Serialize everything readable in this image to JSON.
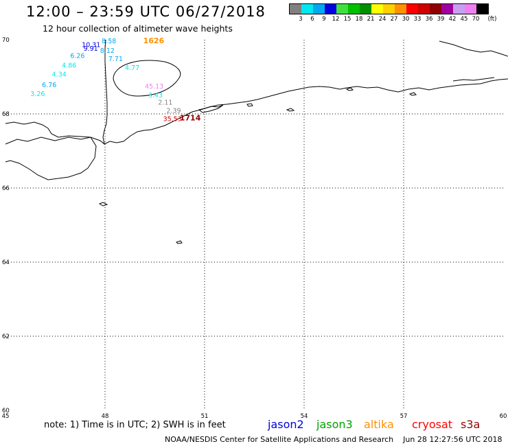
{
  "header": {
    "title": "12:00 – 23:59 UTC 06/27/2018",
    "subtitle": "12 hour collection of altimeter wave heights"
  },
  "legend": {
    "unit": "(ft)",
    "bins": [
      {
        "label": "3",
        "color": "#808080"
      },
      {
        "label": "6",
        "color": "#00e8f0"
      },
      {
        "label": "9",
        "color": "#00a8f0"
      },
      {
        "label": "12",
        "color": "#0000e0"
      },
      {
        "label": "15",
        "color": "#40e040"
      },
      {
        "label": "18",
        "color": "#00c000"
      },
      {
        "label": "21",
        "color": "#009000"
      },
      {
        "label": "24",
        "color": "#ffff00"
      },
      {
        "label": "27",
        "color": "#ffd000"
      },
      {
        "label": "30",
        "color": "#ff9000"
      },
      {
        "label": "33",
        "color": "#ff0000"
      },
      {
        "label": "36",
        "color": "#d00000"
      },
      {
        "label": "39",
        "color": "#900000"
      },
      {
        "label": "42",
        "color": "#a000a0"
      },
      {
        "label": "45",
        "color": "#c8a0f0"
      },
      {
        "label": "70",
        "color": "#f080f0"
      },
      {
        "label": "",
        "color": "#000000"
      }
    ]
  },
  "map": {
    "lon_range": [
      45,
      60
    ],
    "lat_range": [
      60,
      70
    ],
    "lon_ticks": [
      "45",
      "48",
      "51",
      "54",
      "57",
      "60"
    ],
    "lat_ticks": [
      "70",
      "68",
      "66",
      "64",
      "62",
      "60"
    ],
    "grid": "dotted"
  },
  "observations": [
    {
      "text": "8.58",
      "lon": 47.9,
      "lat": 69.98,
      "color": "#00a8f0"
    },
    {
      "text": "1626",
      "lon": 49.15,
      "lat": 69.98,
      "color": "#ff9000",
      "bold": true
    },
    {
      "text": "10.31",
      "lon": 47.3,
      "lat": 69.88,
      "color": "#0000e0"
    },
    {
      "text": "9.91",
      "lon": 47.35,
      "lat": 69.78,
      "color": "#0000e0"
    },
    {
      "text": "8.12",
      "lon": 47.85,
      "lat": 69.72,
      "color": "#00a8f0"
    },
    {
      "text": "6.26",
      "lon": 46.95,
      "lat": 69.58,
      "color": "#00a8f0"
    },
    {
      "text": "7.71",
      "lon": 48.1,
      "lat": 69.5,
      "color": "#00a8f0"
    },
    {
      "text": "4.86",
      "lon": 46.7,
      "lat": 69.32,
      "color": "#00e8f0"
    },
    {
      "text": "4.77",
      "lon": 48.6,
      "lat": 69.26,
      "color": "#00e8f0"
    },
    {
      "text": "4.34",
      "lon": 46.4,
      "lat": 69.08,
      "color": "#00e8f0"
    },
    {
      "text": "6.76",
      "lon": 46.1,
      "lat": 68.8,
      "color": "#00a8f0"
    },
    {
      "text": "45.13",
      "lon": 49.2,
      "lat": 68.76,
      "color": "#f080f0"
    },
    {
      "text": "3.26",
      "lon": 45.75,
      "lat": 68.56,
      "color": "#00e8f0"
    },
    {
      "text": "3.43",
      "lon": 49.3,
      "lat": 68.52,
      "color": "#00e8f0"
    },
    {
      "text": "2.11",
      "lon": 49.6,
      "lat": 68.32,
      "color": "#808080"
    },
    {
      "text": "2.39",
      "lon": 49.85,
      "lat": 68.1,
      "color": "#808080"
    },
    {
      "text": "35.53",
      "lon": 49.75,
      "lat": 67.88,
      "color": "#d00000"
    },
    {
      "text": "1714",
      "lon": 50.25,
      "lat": 67.9,
      "color": "#900000",
      "bold": true
    }
  ],
  "footer": {
    "note": "note: 1) Time is in UTC; 2) SWH is in feet",
    "satellites": [
      {
        "name": "jason2",
        "color": "#0000e0"
      },
      {
        "name": "jason3",
        "color": "#00a000"
      },
      {
        "name": "altika",
        "color": "#ff9000"
      },
      {
        "name": "cryosat",
        "color": "#ff0000"
      },
      {
        "name": "s3a",
        "color": "#900000"
      }
    ],
    "credit": "NOAA/NESDIS Center for Satellite Applications and Research",
    "timestamp": "Jun 28 12:27:56 UTC 2018"
  }
}
